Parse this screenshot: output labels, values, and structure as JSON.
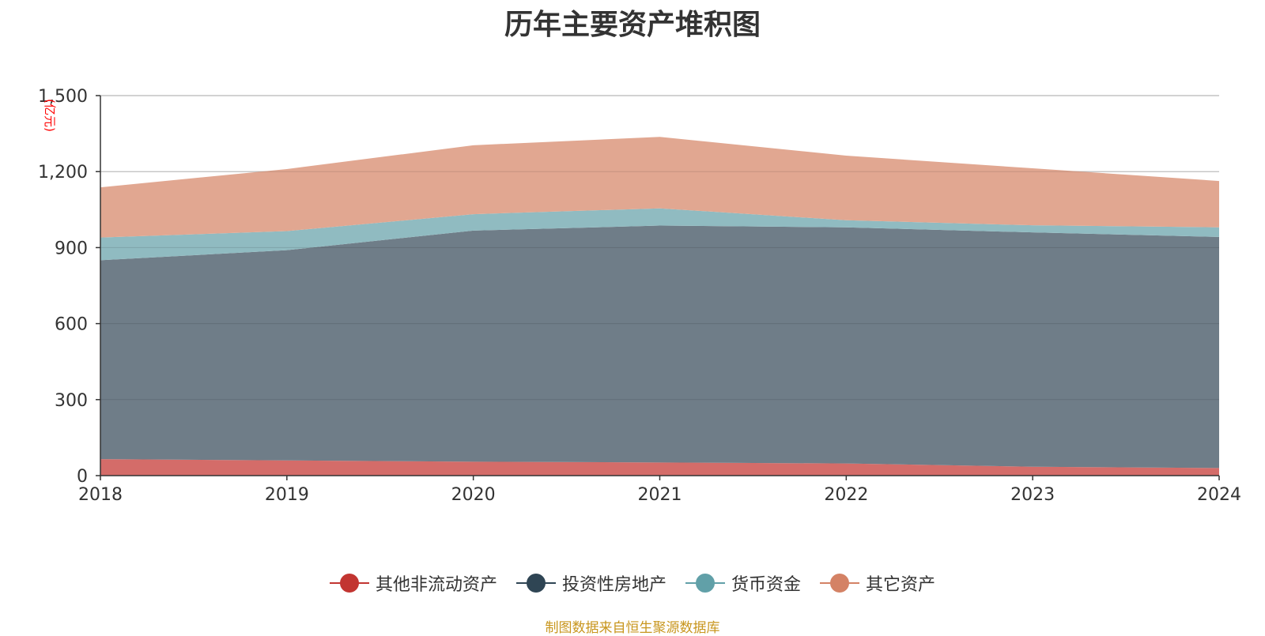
{
  "chart_data": {
    "type": "area",
    "stacked": true,
    "title": "历年主要资产堆积图",
    "y_unit": "(亿元)",
    "categories": [
      "2018",
      "2019",
      "2020",
      "2021",
      "2022",
      "2023",
      "2024"
    ],
    "ylim": [
      0,
      1500
    ],
    "yticks": [
      "0",
      "300",
      "600",
      "900",
      "1,200",
      "1,500"
    ],
    "ytick_values": [
      0,
      300,
      600,
      900,
      1200,
      1500
    ],
    "grid": true,
    "legend_position": "bottom",
    "series": [
      {
        "name": "其他非流动资产",
        "color": "#c23531",
        "fill": "#d46c69",
        "values": [
          65,
          60,
          55,
          52,
          48,
          35,
          30
        ]
      },
      {
        "name": "投资性房地产",
        "color": "#2f4554",
        "fill": "#6f7d88",
        "values": [
          785,
          830,
          912,
          935,
          932,
          925,
          912
        ]
      },
      {
        "name": "货币资金",
        "color": "#61a0a8",
        "fill": "#90bbc1",
        "values": [
          90,
          75,
          65,
          68,
          28,
          28,
          38
        ]
      },
      {
        "name": "其它资产",
        "color": "#d48265",
        "fill": "#e1a791",
        "values": [
          198,
          245,
          272,
          282,
          255,
          225,
          183
        ]
      }
    ]
  },
  "footer": {
    "source": "制图数据来自恒生聚源数据库"
  }
}
